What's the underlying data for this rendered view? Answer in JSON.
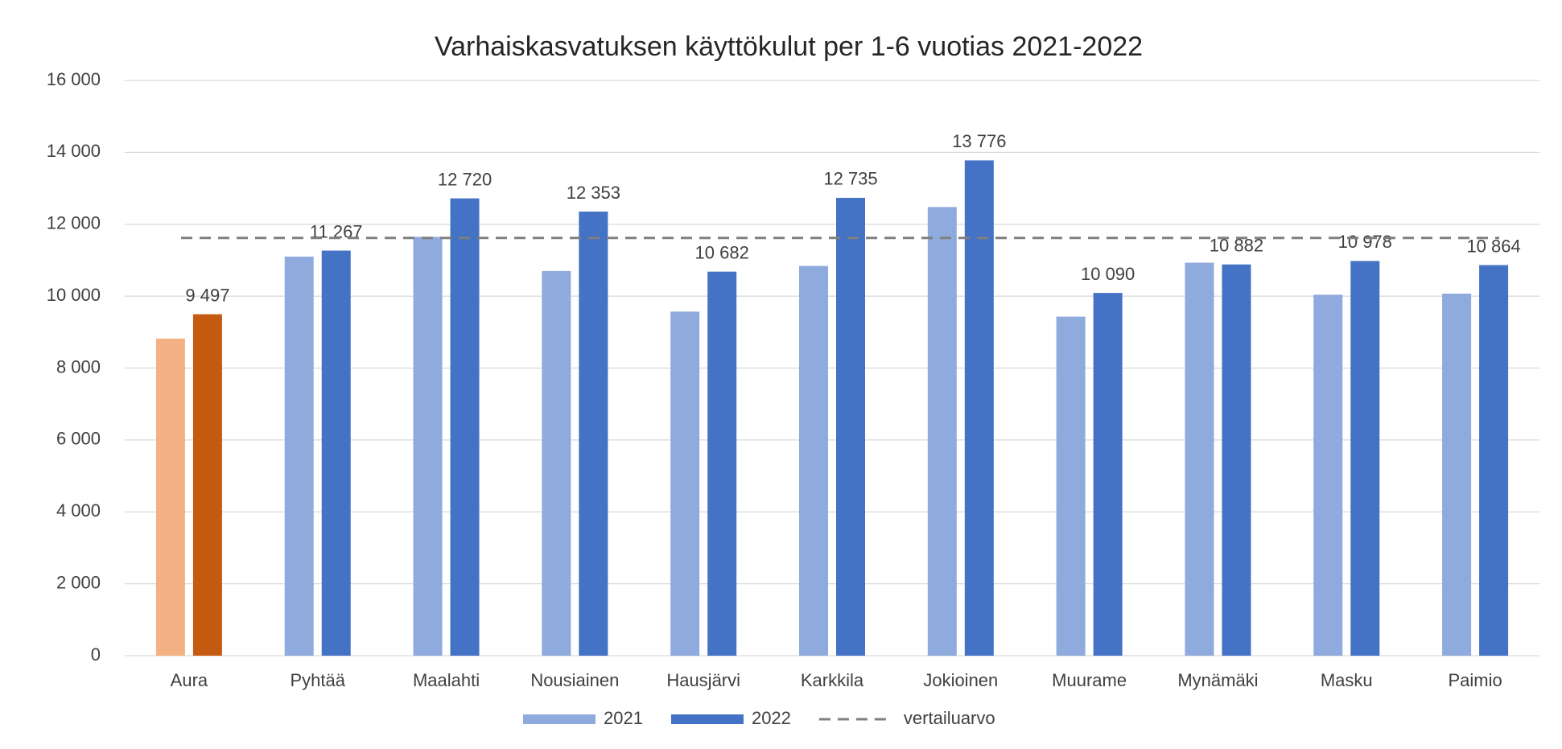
{
  "chart_data": {
    "type": "bar",
    "title": "Varhaiskasvatuksen käyttökulut per 1-6 vuotias 2021-2022",
    "categories": [
      "Aura",
      "Pyhtää",
      "Maalahti",
      "Nousiainen",
      "Hausjärvi",
      "Karkkila",
      "Jokioinen",
      "Muurame",
      "Mynämäki",
      "Masku",
      "Paimio"
    ],
    "series": [
      {
        "name": "2021",
        "color": "#8faadc",
        "colors": [
          "#f4b183",
          "#8faadc",
          "#8faadc",
          "#8faadc",
          "#8faadc",
          "#8faadc",
          "#8faadc",
          "#8faadc",
          "#8faadc",
          "#8faadc",
          "#8faadc"
        ],
        "values": [
          8820,
          11100,
          11650,
          10700,
          9570,
          10840,
          12480,
          9430,
          10930,
          10040,
          10070
        ]
      },
      {
        "name": "2022",
        "color": "#4472c4",
        "colors": [
          "#c55a11",
          "#4472c4",
          "#4472c4",
          "#4472c4",
          "#4472c4",
          "#4472c4",
          "#4472c4",
          "#4472c4",
          "#4472c4",
          "#4472c4",
          "#4472c4"
        ],
        "values": [
          9497,
          11267,
          12720,
          12353,
          10682,
          12735,
          13776,
          10090,
          10882,
          10978,
          10864
        ],
        "value_labels": [
          "9 497",
          "11 267",
          "12 720",
          "12 353",
          "10 682",
          "12 735",
          "13 776",
          "10 090",
          "10 882",
          "10 978",
          "10 864"
        ]
      }
    ],
    "reference": {
      "name": "vertailuarvo",
      "value": 11620,
      "color": "#7f7f7f"
    },
    "ylim": [
      0,
      16000
    ],
    "yticks": [
      0,
      {
        "value": 2000,
        "label": "2 000"
      },
      {
        "value": 4000,
        "label": "4 000"
      },
      {
        "value": 6000,
        "label": "6 000"
      },
      {
        "value": 8000,
        "label": "8 000"
      },
      {
        "value": 10000,
        "label": "10 000"
      },
      {
        "value": 12000,
        "label": "12 000"
      },
      {
        "value": 14000,
        "label": "14 000"
      },
      {
        "value": 16000,
        "label": "16 000"
      }
    ],
    "grid": true,
    "legend": "bottom"
  }
}
